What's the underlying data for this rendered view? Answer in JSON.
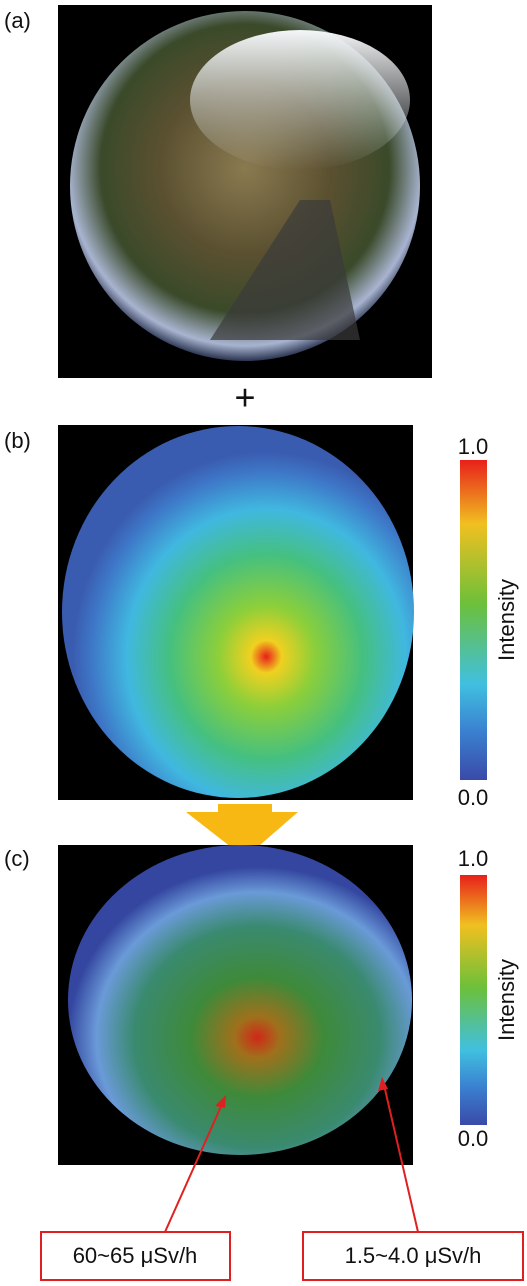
{
  "panels": [
    {
      "label": "(a)"
    },
    {
      "label": "(b)",
      "colorbar": {
        "max": "1.0",
        "min": "0.0",
        "title": "Intensity"
      }
    },
    {
      "label": "(c)",
      "colorbar": {
        "max": "1.0",
        "min": "0.0",
        "title": "Intensity"
      }
    }
  ],
  "operator": "+",
  "annotations": [
    {
      "text": "60~65 μSv/h"
    },
    {
      "text": "1.5~4.0 μSv/h"
    }
  ]
}
